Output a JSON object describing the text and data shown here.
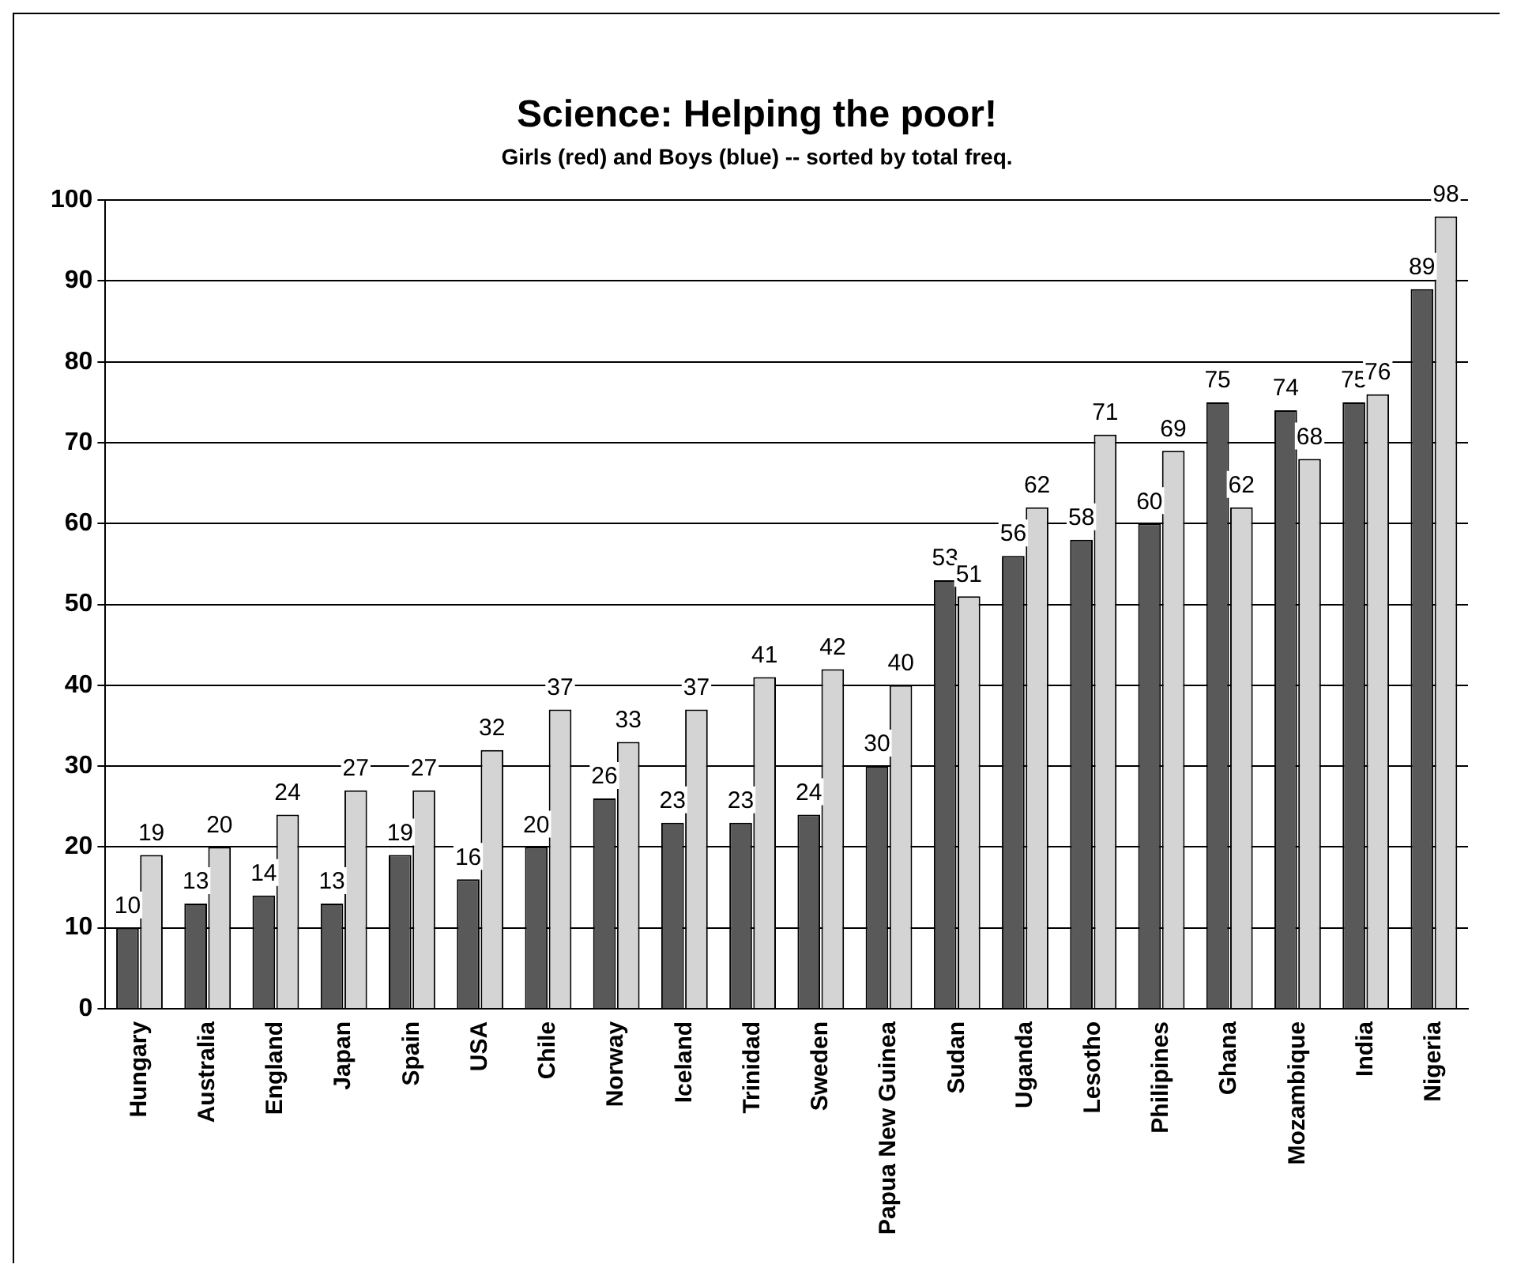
{
  "chart_data": {
    "type": "bar",
    "title": "Science: Helping the poor!",
    "subtitle": "Girls (red) and Boys (blue) -- sorted by total freq.",
    "categories": [
      "Hungary",
      "Australia",
      "England",
      "Japan",
      "Spain",
      "USA",
      "Chile",
      "Norway",
      "Iceland",
      "Trinidad",
      "Sweden",
      "Papua New Guinea",
      "Sudan",
      "Uganda",
      "Lesotho",
      "Philipines",
      "Ghana",
      "Mozambique",
      "India",
      "Nigeria"
    ],
    "series": [
      {
        "color": "#595959",
        "values": [
          10,
          13,
          14,
          13,
          19,
          16,
          20,
          26,
          23,
          23,
          24,
          30,
          53,
          56,
          58,
          60,
          75,
          74,
          75,
          89
        ]
      },
      {
        "color": "#d4d4d4",
        "values": [
          19,
          20,
          24,
          27,
          27,
          32,
          37,
          33,
          37,
          41,
          42,
          40,
          51,
          62,
          71,
          69,
          62,
          68,
          76,
          98
        ]
      }
    ],
    "ylim": [
      0,
      100
    ],
    "yticks": [
      0,
      10,
      20,
      30,
      40,
      50,
      60,
      70,
      80,
      90,
      100
    ],
    "grid": "y",
    "data_labels": true,
    "legend": false
  }
}
